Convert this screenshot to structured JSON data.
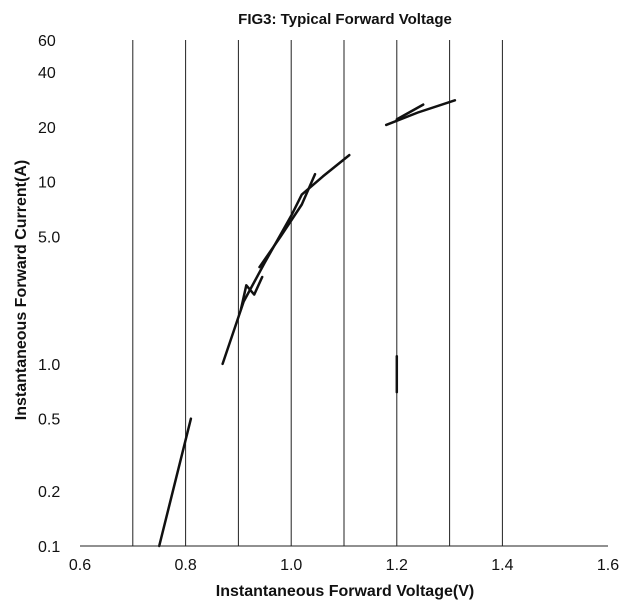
{
  "chart_data": {
    "type": "line",
    "title": "FIG3: Typical Forward Voltage",
    "xlabel": "Instantaneous Forward Voltage(V)",
    "ylabel": "Instantaneous Forward Current(A)",
    "xlim": [
      0.6,
      1.6
    ],
    "ylim": [
      0.1,
      60
    ],
    "yscale": "log",
    "grid": "vertical",
    "x_ticks": [
      0.6,
      0.8,
      1.0,
      1.2,
      1.4,
      1.6
    ],
    "x_tick_labels": [
      "0.6",
      "0.8",
      "1.0",
      "1.2",
      "1.4",
      "1.6"
    ],
    "y_ticks": [
      0.1,
      0.2,
      0.5,
      1.0,
      5.0,
      10,
      20,
      40,
      60
    ],
    "y_tick_labels": [
      "0.1",
      "0.2",
      "0.5",
      "1.0",
      "5.0",
      "10",
      "20",
      "40",
      "60"
    ],
    "x_gridlines": [
      0.7,
      0.8,
      0.9,
      1.0,
      1.1,
      1.2,
      1.3,
      1.4
    ],
    "segments": [
      {
        "x": [
          0.75,
          0.81
        ],
        "y": [
          0.1,
          0.5
        ]
      },
      {
        "x": [
          0.87,
          0.91,
          0.95,
          1.0,
          1.02,
          1.06,
          1.11
        ],
        "y": [
          1.0,
          2.2,
          3.6,
          6.5,
          8.5,
          10.7,
          14
        ]
      },
      {
        "x": [
          0.94,
          0.98,
          1.02,
          1.045
        ],
        "y": [
          3.4,
          5.0,
          7.5,
          11
        ]
      },
      {
        "x": [
          0.905,
          0.915,
          0.93,
          0.945
        ],
        "y": [
          2.0,
          2.7,
          2.4,
          3.0
        ]
      },
      {
        "x": [
          1.18,
          1.24,
          1.31
        ],
        "y": [
          20.5,
          24,
          28
        ]
      },
      {
        "x": [
          1.2,
          1.25
        ],
        "y": [
          22,
          26.5
        ]
      },
      {
        "x": [
          1.2,
          1.2
        ],
        "y": [
          0.7,
          1.1
        ]
      }
    ]
  }
}
